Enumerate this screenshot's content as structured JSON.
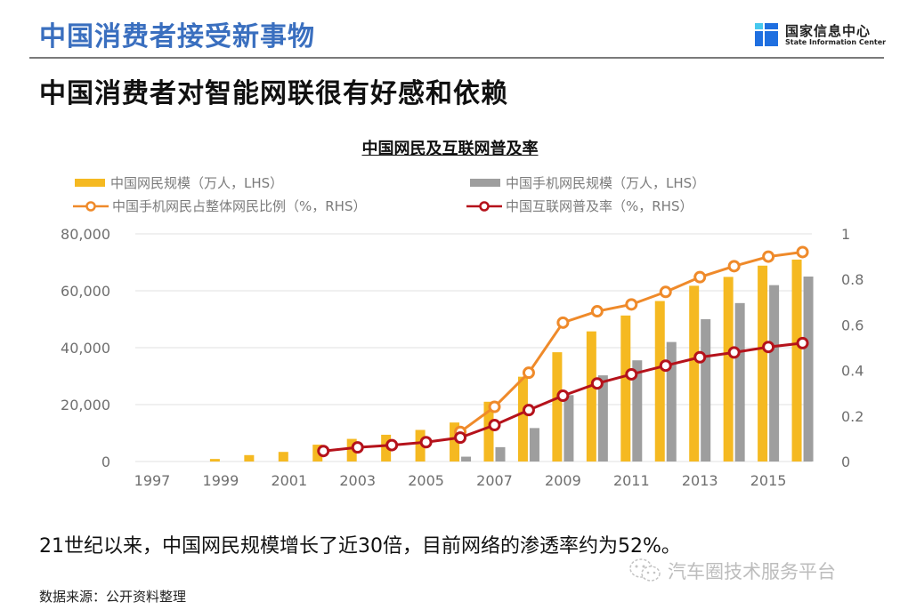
{
  "header": {
    "title": "中国消费者接受新事物",
    "logo_cn": "国家信息中心",
    "logo_en": "State Information Center",
    "subtitle": "中国消费者对智能网联很有好感和依赖"
  },
  "caption": "21世纪以来，中国网民规模增长了近30倍，目前网络的渗透率约为52%。",
  "source": "数据来源：公开资料整理",
  "watermark": "汽车圈技术服务平台",
  "colors": {
    "title_blue": "#3a6fbf",
    "internet_users": "#f5b921",
    "mobile_users": "#9e9e9e",
    "mobile_share": "#ef8a2a",
    "penetration": "#b5121b"
  },
  "chart_data": {
    "type": "bar",
    "title": "中国网民及互联网普及率",
    "xlabel": "",
    "ylabel": "",
    "legend_position": "top",
    "grid": true,
    "x": [
      1997,
      1998,
      1999,
      2000,
      2001,
      2002,
      2003,
      2004,
      2005,
      2006,
      2007,
      2008,
      2009,
      2010,
      2011,
      2012,
      2013,
      2014,
      2015,
      2016
    ],
    "x_tick_labels": [
      "1997",
      "1999",
      "2001",
      "2003",
      "2005",
      "2007",
      "2009",
      "2011",
      "2013",
      "2015"
    ],
    "y_left": {
      "range": [
        0,
        80000
      ],
      "tick_labels": [
        "0",
        "20,000",
        "40,000",
        "60,000",
        "80,000"
      ],
      "ticks": [
        0,
        20000,
        40000,
        60000,
        80000
      ]
    },
    "y_right": {
      "range": [
        0,
        1
      ],
      "tick_labels": [
        "0",
        "0.2",
        "0.4",
        "0.6",
        "0.8",
        "1"
      ],
      "ticks": [
        0,
        0.2,
        0.4,
        0.6,
        0.8,
        1
      ]
    },
    "series": [
      {
        "name": "中国网民规模（万人，LHS）",
        "type": "bar",
        "axis": "left",
        "values": [
          null,
          null,
          890,
          2250,
          3370,
          5910,
          7950,
          9400,
          11100,
          13700,
          21000,
          29800,
          38400,
          45730,
          51310,
          56400,
          61758,
          64875,
          68826,
          70958
        ]
      },
      {
        "name": "中国手机网民规模（万人，LHS）",
        "type": "bar",
        "axis": "left",
        "values": [
          null,
          null,
          null,
          null,
          null,
          null,
          null,
          null,
          null,
          1700,
          5040,
          11760,
          23344,
          30274,
          35558,
          41997,
          50006,
          55678,
          61981,
          65000
        ]
      },
      {
        "name": "中国手机网民占整体网民比例（%，RHS）",
        "type": "line",
        "axis": "right",
        "values": [
          null,
          null,
          null,
          null,
          null,
          null,
          null,
          null,
          null,
          0.13,
          0.24,
          0.39,
          0.61,
          0.66,
          0.69,
          0.745,
          0.81,
          0.858,
          0.9,
          0.92
        ]
      },
      {
        "name": "中国互联网普及率（%，RHS）",
        "type": "line",
        "axis": "right",
        "values": [
          null,
          null,
          null,
          null,
          null,
          0.046,
          0.062,
          0.072,
          0.085,
          0.105,
          0.16,
          0.226,
          0.289,
          0.343,
          0.383,
          0.421,
          0.458,
          0.479,
          0.503,
          0.52
        ]
      }
    ]
  }
}
